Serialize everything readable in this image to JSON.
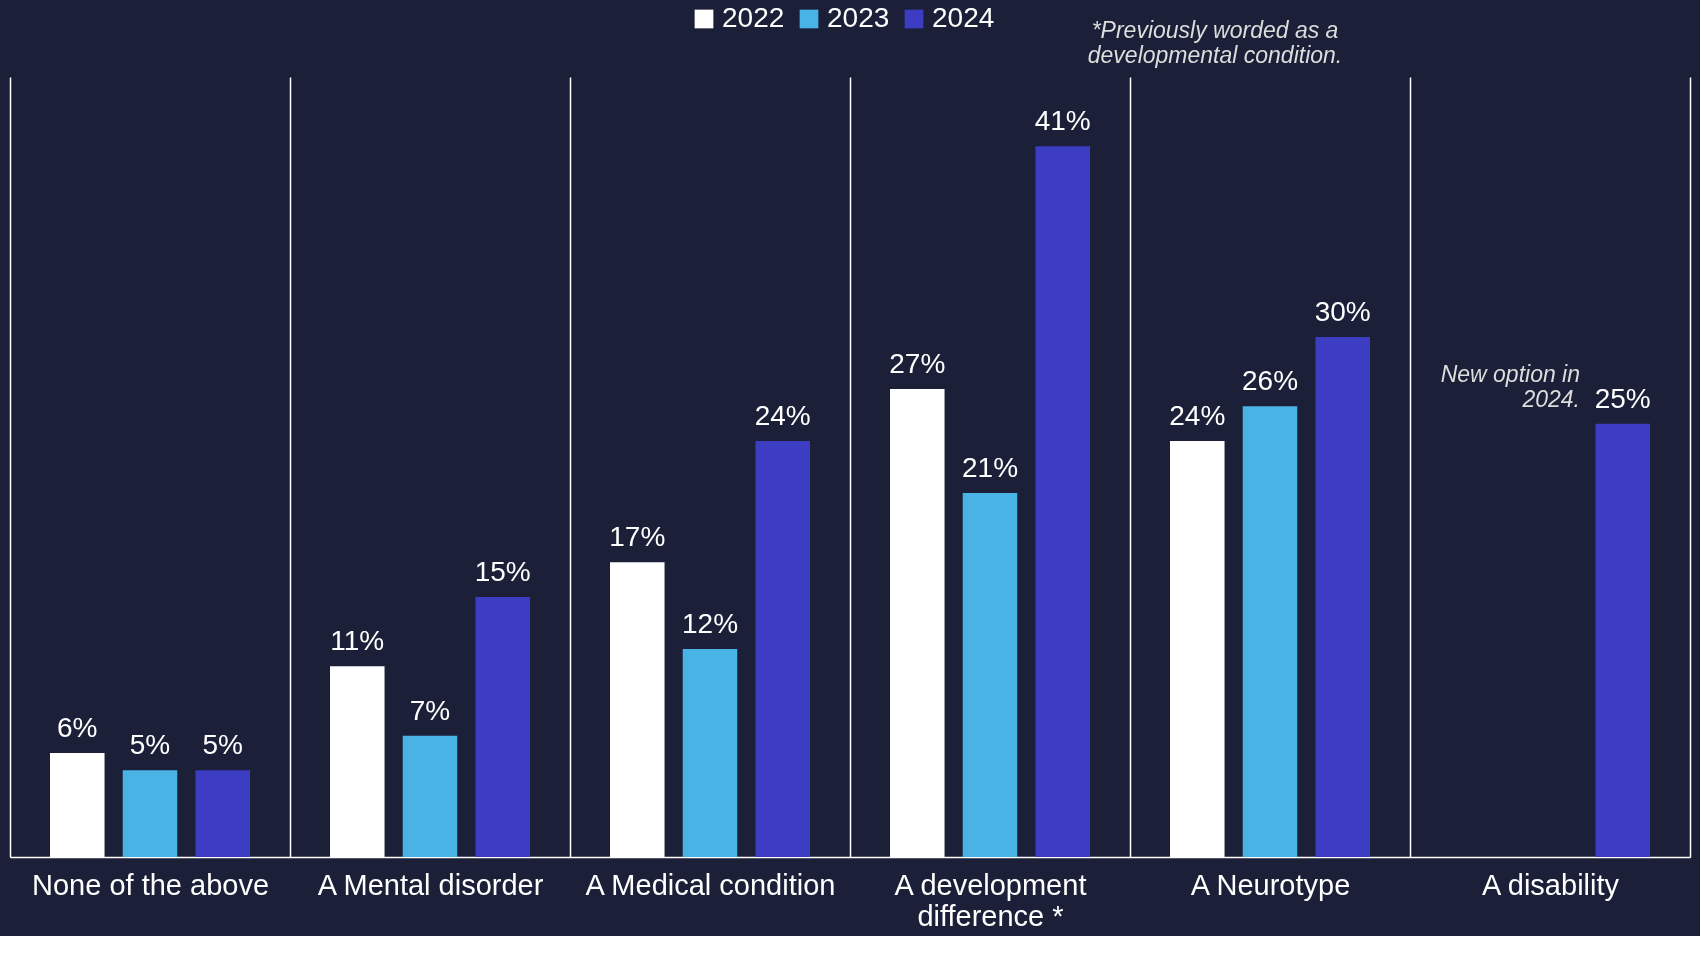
{
  "chart_data": {
    "type": "bar",
    "categories": [
      "None of the above",
      "A Mental disorder",
      "A Medical condition",
      "A development difference *",
      "A Neurotype",
      "A disability"
    ],
    "series": [
      {
        "name": "2022",
        "color": "#ffffff",
        "values": [
          6,
          11,
          17,
          27,
          24,
          null
        ],
        "value_labels": [
          "6%",
          "11%",
          "17%",
          "27%",
          "24%",
          null
        ]
      },
      {
        "name": "2023",
        "color": "#4ab3e6",
        "values": [
          5,
          7,
          12,
          21,
          26,
          null
        ],
        "value_labels": [
          "5%",
          "7%",
          "12%",
          "21%",
          "26%",
          null
        ]
      },
      {
        "name": "2024",
        "color": "#3d3dc4",
        "values": [
          5,
          15,
          24,
          41,
          30,
          25
        ],
        "value_labels": [
          "5%",
          "15%",
          "24%",
          "41%",
          "30%",
          "25%"
        ]
      }
    ],
    "annotations": [
      "*Previously worded as a developmental condition.",
      "New option in 2024."
    ],
    "legend": "top",
    "grid": "x"
  }
}
